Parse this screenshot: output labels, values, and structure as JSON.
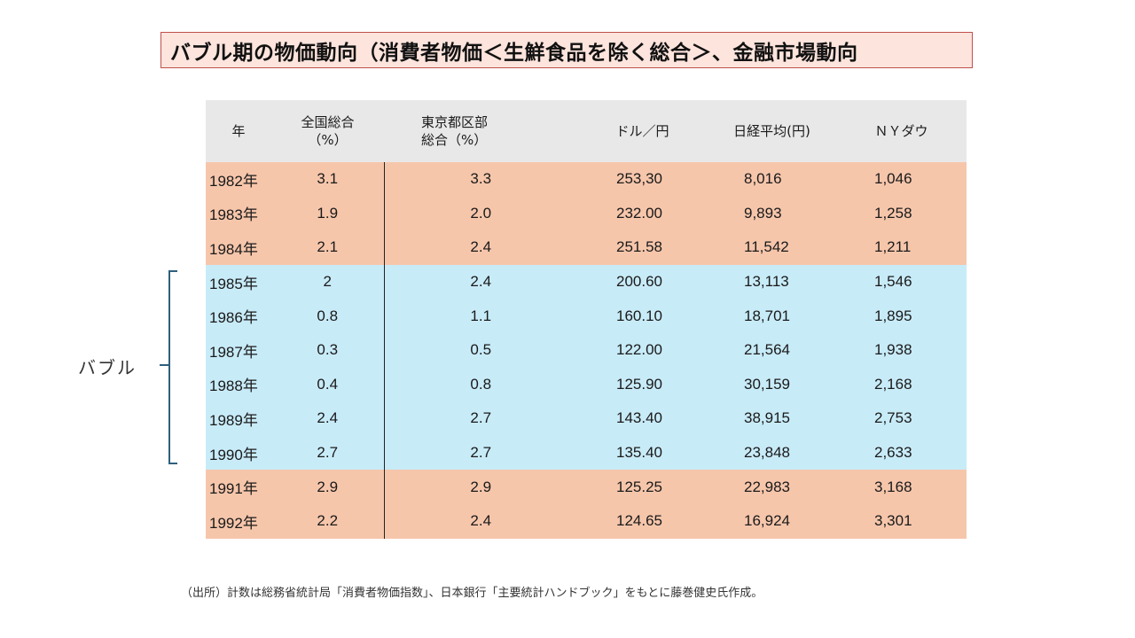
{
  "title": "バブル期の物価動向（消費者物価＜生鮮食品を除く総合＞、金融市場動向",
  "bubble_label": "バブル",
  "table": {
    "headers": [
      "年",
      "全国総合\n（%）",
      "東京都区部\n総合（%）",
      "ドル／円",
      "日経平均(円)",
      "ＮＹダウ"
    ],
    "rows": [
      {
        "year": "1982年",
        "national": "3.1",
        "tokyo": "3.3",
        "usd_jpy": "253,30",
        "nikkei": "8,016",
        "ny_dow": "1,046",
        "period": "orange"
      },
      {
        "year": "1983年",
        "national": "1.9",
        "tokyo": "2.0",
        "usd_jpy": "232.00",
        "nikkei": "9,893",
        "ny_dow": "1,258",
        "period": "orange"
      },
      {
        "year": "1984年",
        "national": "2.1",
        "tokyo": "2.4",
        "usd_jpy": "251.58",
        "nikkei": "11,542",
        "ny_dow": "1,211",
        "period": "orange"
      },
      {
        "year": "1985年",
        "national": "2",
        "tokyo": "2.4",
        "usd_jpy": "200.60",
        "nikkei": "13,113",
        "ny_dow": "1,546",
        "period": "blue"
      },
      {
        "year": "1986年",
        "national": "0.8",
        "tokyo": "1.1",
        "usd_jpy": "160.10",
        "nikkei": "18,701",
        "ny_dow": "1,895",
        "period": "blue"
      },
      {
        "year": "1987年",
        "national": "0.3",
        "tokyo": "0.5",
        "usd_jpy": "122.00",
        "nikkei": "21,564",
        "ny_dow": "1,938",
        "period": "blue"
      },
      {
        "year": "1988年",
        "national": "0.4",
        "tokyo": "0.8",
        "usd_jpy": "125.90",
        "nikkei": "30,159",
        "ny_dow": "2,168",
        "period": "blue"
      },
      {
        "year": "1989年",
        "national": "2.4",
        "tokyo": "2.7",
        "usd_jpy": "143.40",
        "nikkei": "38,915",
        "ny_dow": "2,753",
        "period": "blue"
      },
      {
        "year": "1990年",
        "national": "2.7",
        "tokyo": "2.7",
        "usd_jpy": "135.40",
        "nikkei": "23,848",
        "ny_dow": "2,633",
        "period": "blue"
      },
      {
        "year": "1991年",
        "national": "2.9",
        "tokyo": "2.9",
        "usd_jpy": "125.25",
        "nikkei": "22,983",
        "ny_dow": "3,168",
        "period": "orange"
      },
      {
        "year": "1992年",
        "national": "2.2",
        "tokyo": "2.4",
        "usd_jpy": "124.65",
        "nikkei": "16,924",
        "ny_dow": "3,301",
        "period": "orange"
      }
    ]
  },
  "footnote": "（出所）計数は総務省統計局「消費者物価指数」、日本銀行「主要統計ハンドブック」をもとに藤巻健史氏作成。",
  "colors": {
    "title_fill": "#fde4dc",
    "title_border": "#c0504d",
    "header_fill": "#e8e8e8",
    "non_bubble_row": "#f6c6ab",
    "bubble_row": "#c8ebf8",
    "bracket": "#2e5f7e"
  }
}
